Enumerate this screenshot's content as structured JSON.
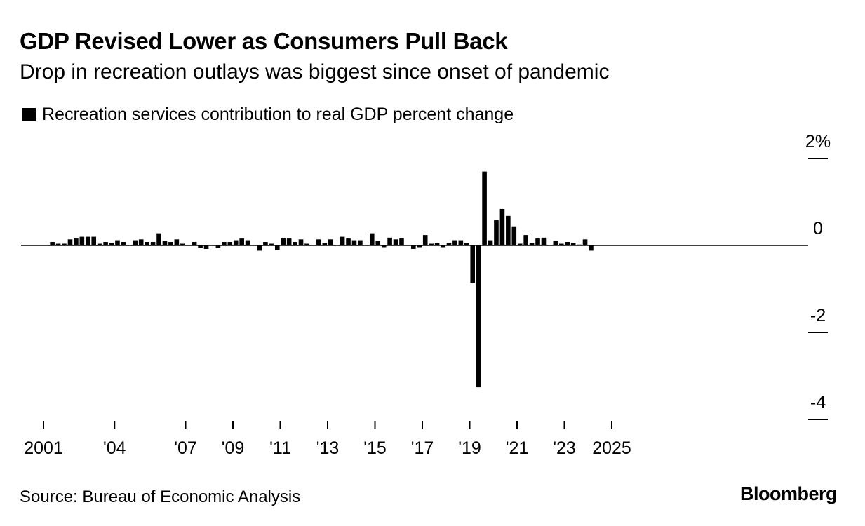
{
  "header": {
    "title": "GDP Revised Lower as Consumers Pull Back",
    "subtitle": "Drop in recreation outlays was biggest since onset of pandemic"
  },
  "legend": {
    "label": "Recreation services contribution to real GDP percent change",
    "color": "#000000"
  },
  "footer": {
    "source": "Source: Bureau of Economic Analysis",
    "brand": "Bloomberg"
  },
  "chart_data": {
    "type": "bar",
    "title": "GDP Revised Lower as Consumers Pull Back",
    "subtitle": "Drop in recreation outlays was biggest since onset of pandemic",
    "xlabel": "",
    "ylabel": "",
    "ylim": [
      -4,
      2
    ],
    "y_ticks": [
      {
        "value": 2,
        "label": "2%"
      },
      {
        "value": 0,
        "label": "0"
      },
      {
        "value": -2,
        "label": "-2"
      },
      {
        "value": -4,
        "label": "-4"
      }
    ],
    "y_axis_position": "right",
    "x_ticks": [
      {
        "year": 2001,
        "label": "2001"
      },
      {
        "year": 2004,
        "label": "'04"
      },
      {
        "year": 2007,
        "label": "'07"
      },
      {
        "year": 2009,
        "label": "'09"
      },
      {
        "year": 2011,
        "label": "'11"
      },
      {
        "year": 2013,
        "label": "'13"
      },
      {
        "year": 2015,
        "label": "'15"
      },
      {
        "year": 2017,
        "label": "'17"
      },
      {
        "year": 2019,
        "label": "'19"
      },
      {
        "year": 2021,
        "label": "'21"
      },
      {
        "year": 2023,
        "label": "'23"
      },
      {
        "year": 2025,
        "label": "2025"
      }
    ],
    "grid": false,
    "legend_position": "top-left",
    "series": [
      {
        "name": "Recreation services contribution to real GDP percent change",
        "color": "#000000",
        "start": "2001-Q1",
        "frequency": "quarterly",
        "values": [
          0.0,
          0.08,
          0.04,
          0.04,
          0.14,
          0.16,
          0.2,
          0.2,
          0.2,
          0.04,
          0.08,
          0.06,
          0.12,
          0.08,
          0.0,
          0.12,
          0.14,
          0.08,
          0.08,
          0.28,
          0.1,
          0.08,
          0.14,
          0.04,
          0.0,
          0.08,
          -0.06,
          -0.08,
          0.0,
          -0.06,
          0.08,
          0.08,
          0.12,
          0.16,
          0.12,
          0.0,
          -0.12,
          0.08,
          0.04,
          -0.1,
          0.16,
          0.16,
          0.08,
          0.14,
          0.04,
          0.0,
          0.14,
          0.06,
          0.14,
          0.0,
          0.2,
          0.16,
          0.12,
          0.12,
          0.0,
          0.28,
          0.1,
          -0.04,
          0.18,
          0.14,
          0.16,
          0.0,
          -0.08,
          -0.04,
          0.24,
          0.04,
          0.06,
          -0.04,
          0.06,
          0.12,
          0.12,
          0.06,
          -0.86,
          -3.26,
          1.7,
          0.12,
          0.58,
          0.84,
          0.68,
          0.44,
          0.04,
          0.24,
          0.06,
          0.16,
          0.18,
          0.0,
          0.1,
          0.04,
          0.08,
          0.06,
          0.02,
          0.14,
          -0.12
        ]
      }
    ]
  }
}
